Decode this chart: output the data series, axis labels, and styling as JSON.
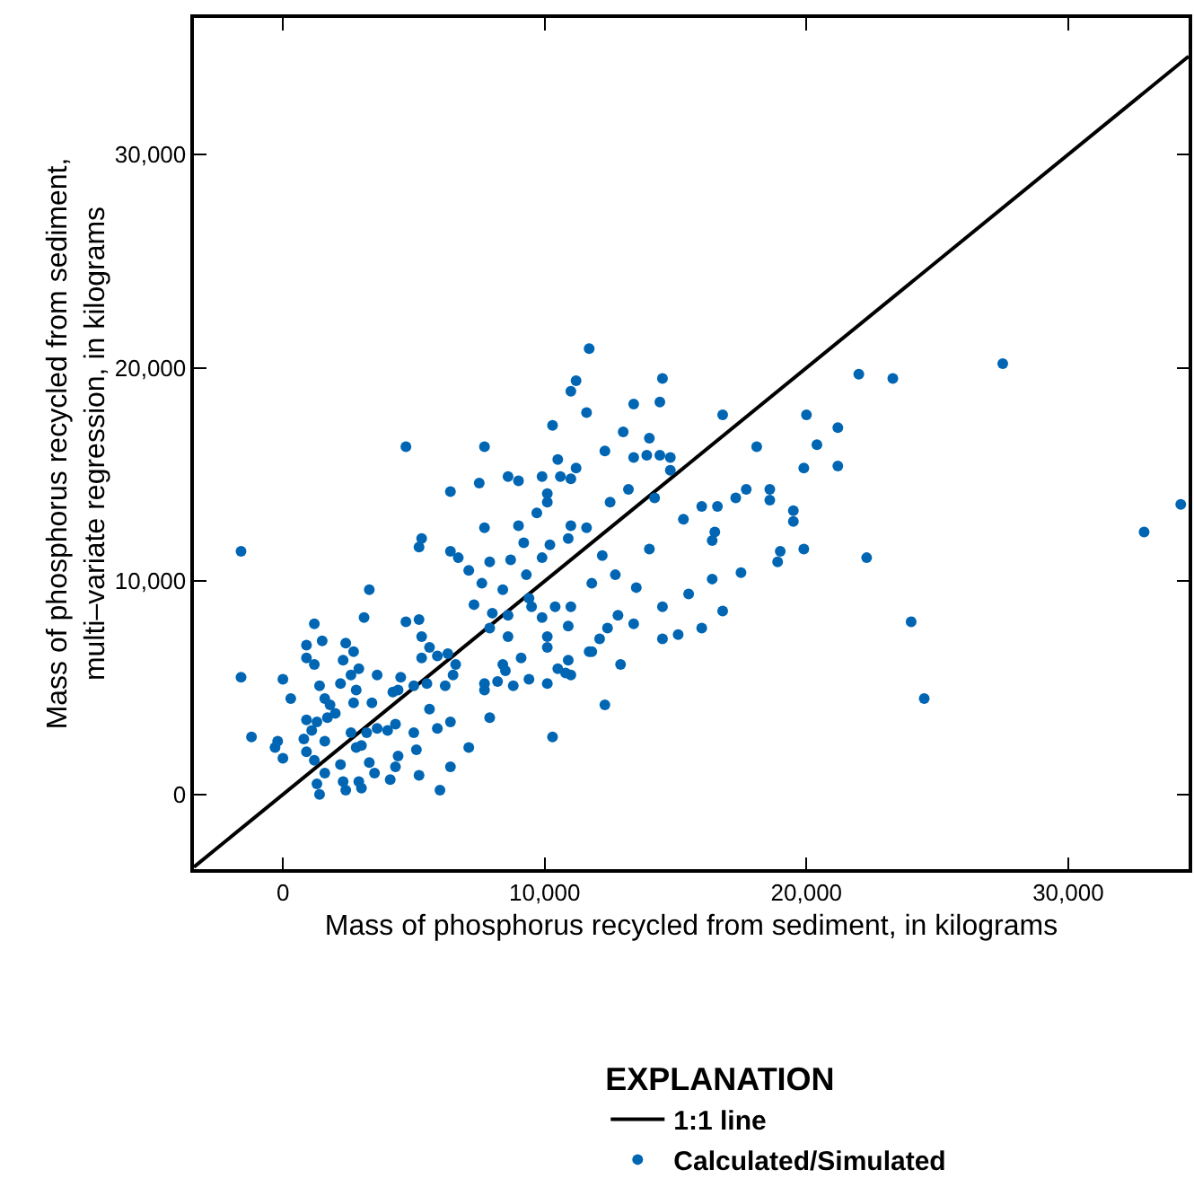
{
  "chart_data": {
    "type": "scatter",
    "xlabel": "Mass of phosphorus recycled from sediment, in kilograms",
    "ylabel": "Mass of phosphorus recycled from sediment,\nmulti–variate regression, in kilograms",
    "legend_title": "EXPLANATION",
    "legend": "bottom",
    "grid": false,
    "marker": "circle",
    "xlim": [
      -3400,
      34600
    ],
    "ylim": [
      -3500,
      36400
    ],
    "xticks": [
      0,
      {
        "value": 10000,
        "label": "10,000"
      },
      {
        "value": 20000,
        "label": "20,000"
      },
      {
        "value": 30000,
        "label": "30,000"
      }
    ],
    "yticks": [
      0,
      {
        "value": 10000,
        "label": "10,000"
      },
      {
        "value": 20000,
        "label": "20,000"
      },
      {
        "value": 30000,
        "label": "30,000"
      }
    ],
    "series": [
      {
        "name": "1:1 line",
        "type": "line",
        "color": "#000000",
        "marker": "none",
        "line_style": "solid",
        "x": [
          -3400,
          34600
        ],
        "values": [
          -3400,
          34600
        ]
      },
      {
        "name": "Calculated/Simulated",
        "color": "#0066b3",
        "x": [
          14500,
          13400,
          14400,
          16800,
          13000,
          14000,
          12300,
          13400,
          13900,
          14400,
          14800,
          14800,
          18100,
          20000,
          21200,
          20400,
          19900,
          21200,
          22000,
          23300,
          27500,
          13200,
          12500,
          14200,
          15300,
          16000,
          16600,
          17300,
          17700,
          18600,
          18600,
          19500,
          19500,
          16500,
          16400,
          14000,
          12200,
          19000,
          18900,
          19900,
          22300,
          32900,
          34300,
          11700,
          11200,
          11000,
          11600,
          10300,
          4700,
          7700,
          10500,
          11200,
          8600,
          9000,
          9900,
          10600,
          11000,
          7500,
          6400,
          10100,
          10100,
          9700,
          7700,
          9000,
          11000,
          11600,
          -1600,
          5300,
          5200,
          6400,
          6700,
          9200,
          10200,
          10900,
          7900,
          8700,
          9900,
          12700,
          11800,
          13500,
          16400,
          17500,
          15500,
          14500,
          16800,
          12800,
          12400,
          13400,
          12100,
          14500,
          15100,
          16000,
          11800,
          12900,
          12300,
          24000,
          24500,
          -1600,
          -1200,
          3300,
          3100,
          1200,
          4700,
          5200,
          900,
          1500,
          2400,
          2700,
          900,
          1200,
          2300,
          5300,
          5600,
          5300,
          5900,
          6300,
          6600,
          2900,
          2600,
          0,
          2200,
          1400,
          3600,
          4500,
          2800,
          4200,
          5000,
          5500,
          6200,
          6500,
          300,
          1600,
          1800,
          2700,
          3400,
          4400,
          2000,
          900,
          1300,
          1700,
          1100,
          800,
          -200,
          -300,
          2600,
          3200,
          3600,
          4000,
          4300,
          5000,
          5600,
          5900,
          6400,
          2800,
          3000,
          1600,
          900,
          0,
          1200,
          2200,
          3300,
          4400,
          5100,
          7100,
          3500,
          4300,
          1600,
          1300,
          2300,
          2900,
          4100,
          5200,
          6400,
          1400,
          2400,
          3000,
          6000,
          7300,
          8000,
          8400,
          7600,
          7100,
          8600,
          9300,
          9400,
          9500,
          9900,
          10400,
          11000,
          7900,
          8600,
          10100,
          10100,
          10900,
          11700,
          9100,
          8400,
          8500,
          7700,
          7700,
          8200,
          8800,
          9400,
          10100,
          10500,
          10900,
          10800,
          11000,
          7900,
          10300
        ],
        "values": [
          19500,
          18300,
          18400,
          17800,
          17000,
          16700,
          16100,
          15800,
          15900,
          15900,
          15800,
          15200,
          16300,
          17800,
          17200,
          16400,
          15300,
          15400,
          19700,
          19500,
          20200,
          14300,
          13700,
          13900,
          12900,
          13500,
          13500,
          13900,
          14300,
          14300,
          13800,
          13300,
          12800,
          12300,
          11900,
          11500,
          11200,
          11400,
          10900,
          11500,
          11100,
          12300,
          13600,
          20900,
          19400,
          18900,
          17900,
          17300,
          16300,
          16300,
          15700,
          15300,
          14900,
          14700,
          14900,
          14900,
          14800,
          14600,
          14200,
          14100,
          13700,
          13200,
          12500,
          12600,
          12600,
          12500,
          11400,
          12000,
          11600,
          11400,
          11100,
          11800,
          11700,
          12000,
          10900,
          11000,
          11100,
          10300,
          9900,
          9700,
          10100,
          10400,
          9400,
          8800,
          8600,
          8400,
          7800,
          8000,
          7300,
          7300,
          7500,
          7800,
          6700,
          6100,
          4200,
          8100,
          4500,
          5500,
          2700,
          9600,
          8300,
          8000,
          8100,
          8200,
          7000,
          7200,
          7100,
          6700,
          6400,
          6100,
          6300,
          7400,
          6900,
          6400,
          6500,
          6600,
          6100,
          5900,
          5600,
          5400,
          5200,
          5100,
          5600,
          5500,
          4900,
          4800,
          5100,
          5200,
          5100,
          5600,
          4500,
          4500,
          4200,
          4300,
          4300,
          4900,
          3800,
          3500,
          3400,
          3600,
          3000,
          2600,
          2500,
          2200,
          2900,
          2900,
          3100,
          3000,
          3300,
          2900,
          4000,
          3100,
          3400,
          2200,
          2300,
          2500,
          2000,
          1700,
          1600,
          1400,
          1500,
          1800,
          2100,
          2200,
          1000,
          1300,
          1000,
          500,
          600,
          600,
          700,
          900,
          1300,
          0,
          200,
          300,
          200,
          8900,
          8500,
          9600,
          9900,
          10500,
          8400,
          10300,
          9200,
          8800,
          8300,
          8800,
          8800,
          7800,
          7400,
          7400,
          6900,
          7900,
          6700,
          6400,
          6100,
          5800,
          5200,
          4900,
          5300,
          5100,
          5400,
          5200,
          5900,
          6300,
          5700,
          5600,
          3600,
          2700
        ]
      }
    ]
  }
}
